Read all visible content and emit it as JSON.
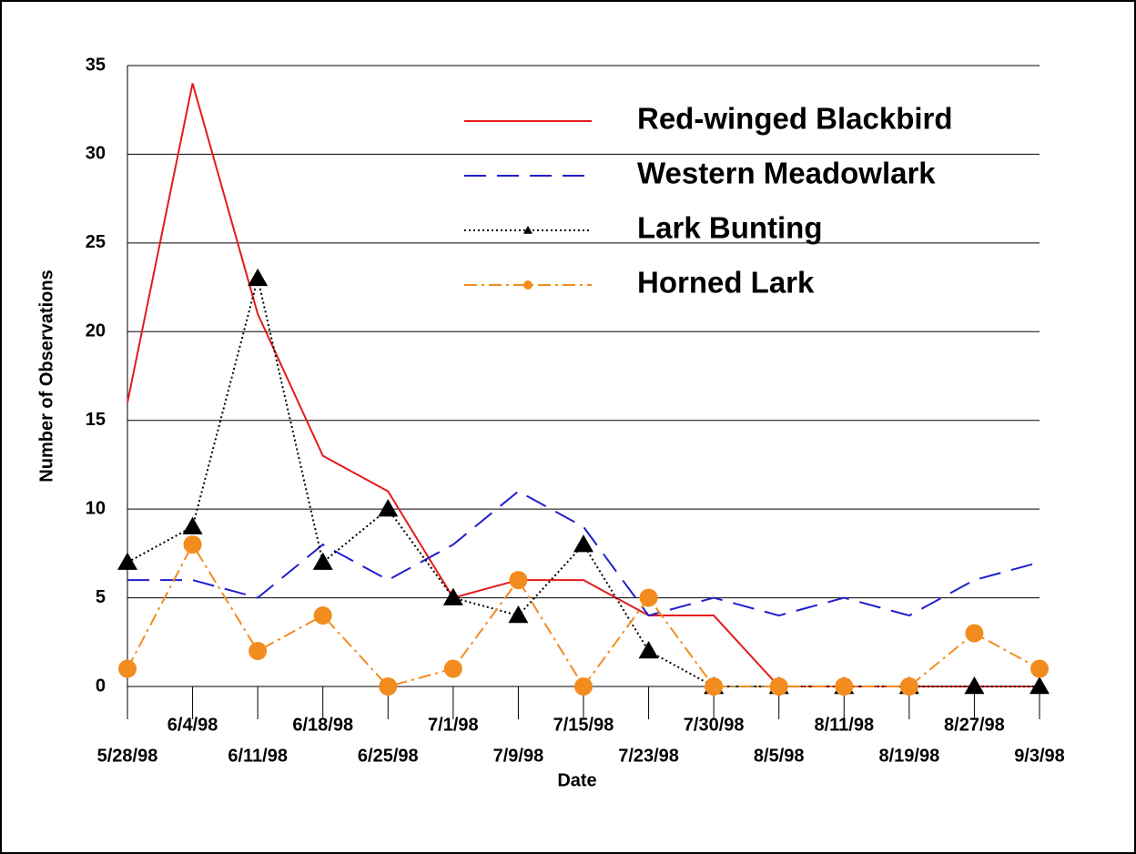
{
  "chart_data": {
    "type": "line",
    "x_label": "Date",
    "y_label": "Number of Observations",
    "categories": [
      "5/28/98",
      "6/4/98",
      "6/11/98",
      "6/18/98",
      "6/25/98",
      "7/1/98",
      "7/9/98",
      "7/15/98",
      "7/23/98",
      "7/30/98",
      "8/5/98",
      "8/11/98",
      "8/19/98",
      "8/27/98",
      "9/3/98"
    ],
    "series": [
      {
        "name": "Red-winged Blackbird",
        "color": "#e31a1c",
        "line_style": "solid",
        "marker": "none",
        "values": [
          16,
          34,
          21,
          13,
          11,
          5,
          6,
          6,
          4,
          4,
          0,
          0,
          0,
          0,
          0
        ]
      },
      {
        "name": "Western Meadowlark",
        "color": "#1f1fcc",
        "line_style": "dashed",
        "marker": "none",
        "values": [
          6,
          6,
          5,
          8,
          6,
          8,
          11,
          9,
          4,
          5,
          4,
          5,
          4,
          6,
          7
        ]
      },
      {
        "name": "Lark Bunting",
        "color": "#000000",
        "line_style": "dotted",
        "marker": "triangle",
        "values": [
          7,
          9,
          23,
          7,
          10,
          5,
          4,
          8,
          2,
          0,
          0,
          0,
          0,
          0,
          0
        ]
      },
      {
        "name": "Horned Lark",
        "color": "#f28c1e",
        "line_style": "dashdot",
        "marker": "circle",
        "values": [
          1,
          8,
          2,
          4,
          0,
          1,
          6,
          0,
          5,
          0,
          0,
          0,
          0,
          3,
          1
        ]
      }
    ],
    "ylim": [
      0,
      35
    ],
    "yticks": [
      0,
      5,
      10,
      15,
      20,
      25,
      30,
      35
    ],
    "grid": true,
    "legend": "top-right"
  }
}
